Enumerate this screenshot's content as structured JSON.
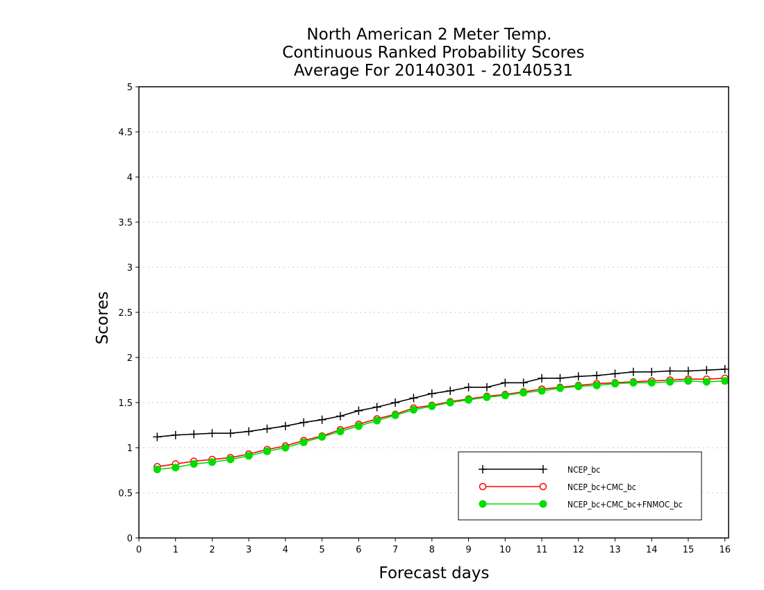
{
  "chart_data": {
    "type": "line",
    "title_lines": [
      "North American 2 Meter Temp.",
      "Continuous Ranked Probability Scores",
      "Average For 20140301 - 20140531"
    ],
    "xlabel": "Forecast days",
    "ylabel": "Scores",
    "xlim": [
      0,
      16.1
    ],
    "ylim": [
      0,
      5
    ],
    "x_ticks": [
      0,
      1,
      2,
      3,
      4,
      5,
      6,
      7,
      8,
      9,
      10,
      11,
      12,
      13,
      14,
      15,
      16
    ],
    "y_ticks": [
      0,
      0.5,
      1,
      1.5,
      2,
      2.5,
      3,
      3.5,
      4,
      4.5,
      5
    ],
    "grid": true,
    "legend_position": "bottom-right",
    "x": [
      0.5,
      1,
      1.5,
      2,
      2.5,
      3,
      3.5,
      4,
      4.5,
      5,
      5.5,
      6,
      6.5,
      7,
      7.5,
      8,
      8.5,
      9,
      9.5,
      10,
      10.5,
      11,
      11.5,
      12,
      12.5,
      13,
      13.5,
      14,
      14.5,
      15,
      15.5,
      16
    ],
    "series": [
      {
        "name": "NCEP_bc",
        "color": "#000000",
        "marker": "plus",
        "values": [
          1.12,
          1.14,
          1.15,
          1.16,
          1.16,
          1.18,
          1.21,
          1.24,
          1.28,
          1.31,
          1.35,
          1.41,
          1.45,
          1.5,
          1.55,
          1.6,
          1.63,
          1.67,
          1.67,
          1.72,
          1.72,
          1.77,
          1.77,
          1.79,
          1.8,
          1.82,
          1.84,
          1.84,
          1.85,
          1.85,
          1.86,
          1.87
        ]
      },
      {
        "name": "NCEP_bc+CMC_bc",
        "color": "#ff0000",
        "marker": "circle-open",
        "values": [
          0.79,
          0.82,
          0.85,
          0.87,
          0.89,
          0.93,
          0.98,
          1.02,
          1.08,
          1.13,
          1.2,
          1.26,
          1.32,
          1.37,
          1.44,
          1.47,
          1.51,
          1.54,
          1.57,
          1.59,
          1.62,
          1.65,
          1.67,
          1.69,
          1.71,
          1.72,
          1.73,
          1.74,
          1.75,
          1.76,
          1.76,
          1.77
        ]
      },
      {
        "name": "NCEP_bc+CMC_bc+FNMOC_bc",
        "color": "#00dd00",
        "marker": "circle-filled",
        "values": [
          0.76,
          0.78,
          0.82,
          0.84,
          0.87,
          0.91,
          0.96,
          1.0,
          1.06,
          1.12,
          1.18,
          1.24,
          1.3,
          1.36,
          1.42,
          1.46,
          1.5,
          1.53,
          1.56,
          1.58,
          1.61,
          1.63,
          1.66,
          1.68,
          1.69,
          1.71,
          1.72,
          1.72,
          1.73,
          1.74,
          1.73,
          1.74
        ]
      }
    ]
  }
}
